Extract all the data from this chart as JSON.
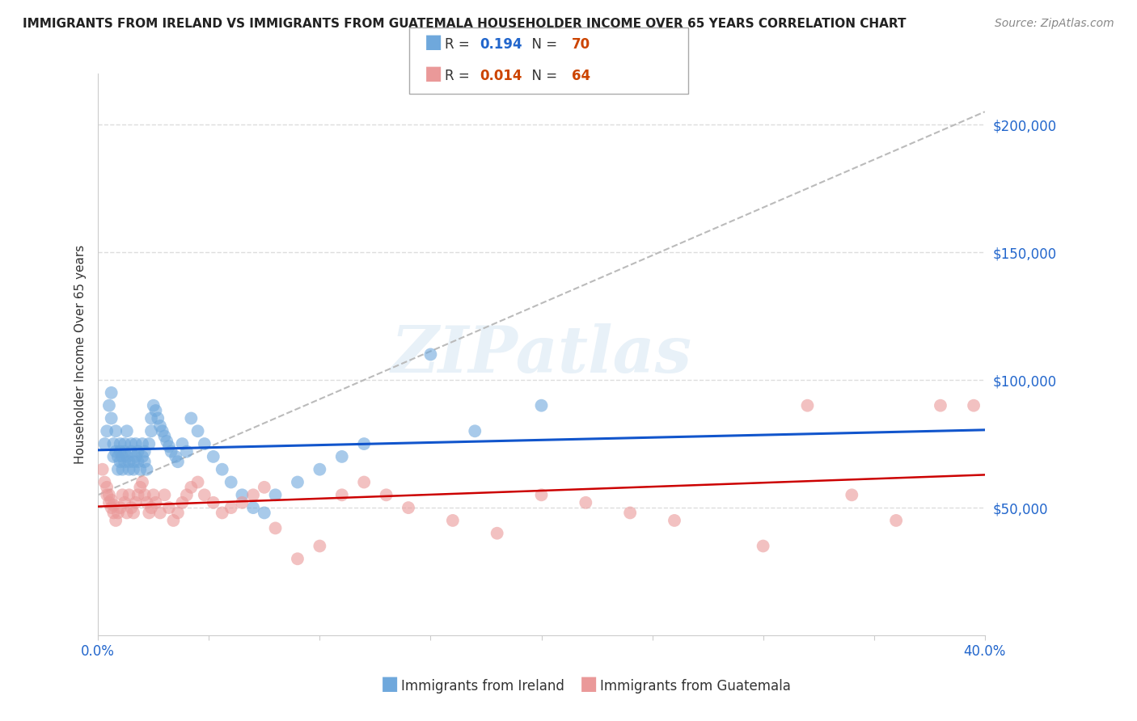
{
  "title": "IMMIGRANTS FROM IRELAND VS IMMIGRANTS FROM GUATEMALA HOUSEHOLDER INCOME OVER 65 YEARS CORRELATION CHART",
  "source": "Source: ZipAtlas.com",
  "ylabel": "Householder Income Over 65 years",
  "xlim": [
    0.0,
    0.4
  ],
  "ylim": [
    0,
    220000
  ],
  "ireland_R": 0.194,
  "ireland_N": 70,
  "guatemala_R": 0.014,
  "guatemala_N": 64,
  "ireland_color": "#6fa8dc",
  "guatemala_color": "#ea9999",
  "ireland_line_color": "#1155cc",
  "guatemala_line_color": "#cc0000",
  "background_color": "#ffffff",
  "grid_color": "#dddddd",
  "ireland_x": [
    0.003,
    0.004,
    0.005,
    0.006,
    0.006,
    0.007,
    0.007,
    0.008,
    0.008,
    0.009,
    0.009,
    0.01,
    0.01,
    0.01,
    0.011,
    0.011,
    0.012,
    0.012,
    0.012,
    0.013,
    0.013,
    0.014,
    0.014,
    0.015,
    0.015,
    0.016,
    0.016,
    0.017,
    0.017,
    0.018,
    0.018,
    0.019,
    0.02,
    0.02,
    0.021,
    0.021,
    0.022,
    0.023,
    0.024,
    0.024,
    0.025,
    0.026,
    0.027,
    0.028,
    0.029,
    0.03,
    0.031,
    0.032,
    0.033,
    0.035,
    0.036,
    0.038,
    0.04,
    0.042,
    0.045,
    0.048,
    0.052,
    0.056,
    0.06,
    0.065,
    0.07,
    0.075,
    0.08,
    0.09,
    0.1,
    0.11,
    0.12,
    0.15,
    0.17,
    0.2
  ],
  "ireland_y": [
    75000,
    80000,
    90000,
    85000,
    95000,
    70000,
    75000,
    80000,
    72000,
    65000,
    70000,
    68000,
    72000,
    75000,
    70000,
    65000,
    68000,
    72000,
    75000,
    80000,
    70000,
    65000,
    68000,
    72000,
    75000,
    68000,
    65000,
    70000,
    75000,
    72000,
    68000,
    65000,
    70000,
    75000,
    72000,
    68000,
    65000,
    75000,
    80000,
    85000,
    90000,
    88000,
    85000,
    82000,
    80000,
    78000,
    76000,
    74000,
    72000,
    70000,
    68000,
    75000,
    72000,
    85000,
    80000,
    75000,
    70000,
    65000,
    60000,
    55000,
    50000,
    48000,
    55000,
    60000,
    65000,
    70000,
    75000,
    110000,
    80000,
    90000
  ],
  "guatemala_x": [
    0.002,
    0.003,
    0.004,
    0.004,
    0.005,
    0.005,
    0.006,
    0.006,
    0.007,
    0.007,
    0.008,
    0.009,
    0.01,
    0.011,
    0.012,
    0.013,
    0.014,
    0.015,
    0.016,
    0.017,
    0.018,
    0.019,
    0.02,
    0.021,
    0.022,
    0.023,
    0.024,
    0.025,
    0.026,
    0.028,
    0.03,
    0.032,
    0.034,
    0.036,
    0.038,
    0.04,
    0.042,
    0.045,
    0.048,
    0.052,
    0.056,
    0.06,
    0.065,
    0.07,
    0.075,
    0.08,
    0.09,
    0.1,
    0.11,
    0.12,
    0.13,
    0.14,
    0.16,
    0.18,
    0.2,
    0.22,
    0.24,
    0.26,
    0.3,
    0.32,
    0.34,
    0.36,
    0.38,
    0.395
  ],
  "guatemala_y": [
    65000,
    60000,
    55000,
    58000,
    52000,
    55000,
    50000,
    53000,
    48000,
    51000,
    45000,
    48000,
    50000,
    55000,
    52000,
    48000,
    55000,
    50000,
    48000,
    52000,
    55000,
    58000,
    60000,
    55000,
    52000,
    48000,
    50000,
    55000,
    52000,
    48000,
    55000,
    50000,
    45000,
    48000,
    52000,
    55000,
    58000,
    60000,
    55000,
    52000,
    48000,
    50000,
    52000,
    55000,
    58000,
    42000,
    30000,
    35000,
    55000,
    60000,
    55000,
    50000,
    45000,
    40000,
    55000,
    52000,
    48000,
    45000,
    35000,
    90000,
    55000,
    45000,
    90000,
    90000
  ]
}
